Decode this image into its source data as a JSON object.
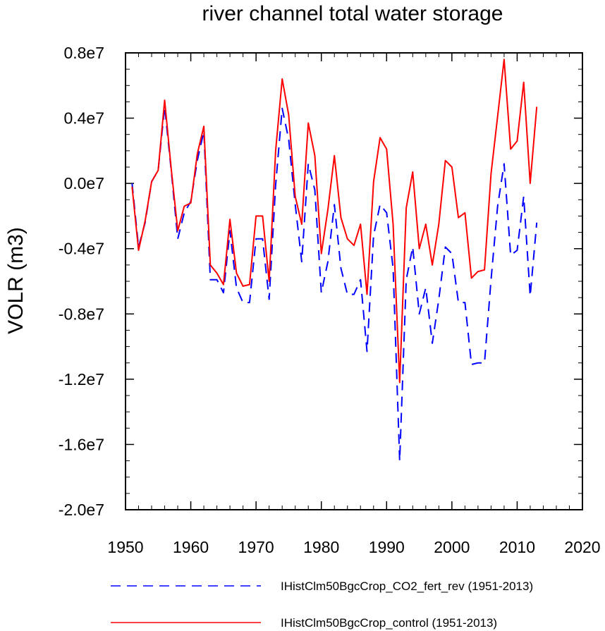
{
  "chart_data": {
    "type": "line",
    "title": "river channel total water storage",
    "xlabel": "",
    "ylabel": "VOLR  (m3)",
    "xlim": [
      1950,
      2020
    ],
    "ylim": [
      -20000000.0,
      8000000.0
    ],
    "xticks": [
      1950,
      1960,
      1970,
      1980,
      1990,
      2000,
      2010,
      2020
    ],
    "xtick_labels": [
      "1950",
      "1960",
      "1970",
      "1980",
      "1990",
      "2000",
      "2010",
      "2020"
    ],
    "yticks": [
      8000000.0,
      4000000.0,
      0.0,
      -4000000.0,
      -8000000.0,
      -12000000.0,
      -16000000.0,
      -20000000.0
    ],
    "ytick_labels": [
      "0.8e7",
      "0.4e7",
      "0.0e7",
      "-0.4e7",
      "-0.8e7",
      "-1.2e7",
      "-1.6e7",
      "-2.0e7"
    ],
    "legend_position": "bottom",
    "x": [
      1951,
      1952,
      1953,
      1954,
      1955,
      1956,
      1957,
      1958,
      1959,
      1960,
      1961,
      1962,
      1963,
      1964,
      1965,
      1966,
      1967,
      1968,
      1969,
      1970,
      1971,
      1972,
      1973,
      1974,
      1975,
      1976,
      1977,
      1978,
      1979,
      1980,
      1981,
      1982,
      1983,
      1984,
      1985,
      1986,
      1987,
      1988,
      1989,
      1990,
      1991,
      1992,
      1993,
      1994,
      1995,
      1996,
      1997,
      1998,
      1999,
      2000,
      2001,
      2002,
      2003,
      2004,
      2005,
      2006,
      2007,
      2008,
      2009,
      2010,
      2011,
      2012,
      2013
    ],
    "series": [
      {
        "name": "IHistClm50BgcCrop_CO2_fert_rev (1951-2013)",
        "color": "#0000ff",
        "dash": "dashed",
        "values": [
          0.0,
          -3900000.0,
          -2400000.0,
          100000.0,
          800000.0,
          4700000.0,
          800000.0,
          -3400000.0,
          -1800000.0,
          -1100000.0,
          1400000.0,
          3200000.0,
          -5900000.0,
          -5900000.0,
          -6700000.0,
          -2900000.0,
          -6400000.0,
          -7300000.0,
          -7300000.0,
          -3400000.0,
          -3400000.0,
          -7100000.0,
          -100000.0,
          4600000.0,
          2700000.0,
          -1300000.0,
          -4800000.0,
          1200000.0,
          -400000.0,
          -6700000.0,
          -4800000.0,
          -1300000.0,
          -5200000.0,
          -6800000.0,
          -6800000.0,
          -5900000.0,
          -10300000.0,
          -3200000.0,
          -1300000.0,
          -1800000.0,
          -5200000.0,
          -17000000.0,
          -5900000.0,
          -3900000.0,
          -8000000.0,
          -6400000.0,
          -9800000.0,
          -7100000.0,
          -3900000.0,
          -4300000.0,
          -7300000.0,
          -7300000.0,
          -11100000.0,
          -11000000.0,
          -11000000.0,
          -5900000.0,
          -1400000.0,
          1200000.0,
          -4400000.0,
          -4100000.0,
          -800000.0,
          -6900000.0,
          -2400000.0
        ]
      },
      {
        "name": "IHistClm50BgcCrop_control (1951-2013)",
        "color": "#ff0000",
        "dash": "solid",
        "values": [
          -200000.0,
          -4100000.0,
          -2300000.0,
          100000.0,
          800000.0,
          5100000.0,
          900000.0,
          -2900000.0,
          -1400000.0,
          -1200000.0,
          1800000.0,
          3500000.0,
          -5000000.0,
          -5500000.0,
          -6200000.0,
          -2200000.0,
          -5500000.0,
          -6300000.0,
          -6200000.0,
          -2000000.0,
          -2000000.0,
          -6000000.0,
          2000000.0,
          6400000.0,
          4200000.0,
          -800000.0,
          -2500000.0,
          3700000.0,
          1700000.0,
          -4300000.0,
          -1600000.0,
          1700000.0,
          -2100000.0,
          -3400000.0,
          -3800000.0,
          -2500000.0,
          -6800000.0,
          100000.0,
          2800000.0,
          2100000.0,
          -2500000.0,
          -12200000.0,
          -1500000.0,
          700000.0,
          -4000000.0,
          -2500000.0,
          -5000000.0,
          -2500000.0,
          1400000.0,
          1000000.0,
          -2100000.0,
          -1800000.0,
          -5800000.0,
          -5400000.0,
          -5300000.0,
          600000.0,
          4100000.0,
          7600000.0,
          2100000.0,
          2600000.0,
          6200000.0,
          0.0,
          4700000.0
        ]
      }
    ]
  }
}
